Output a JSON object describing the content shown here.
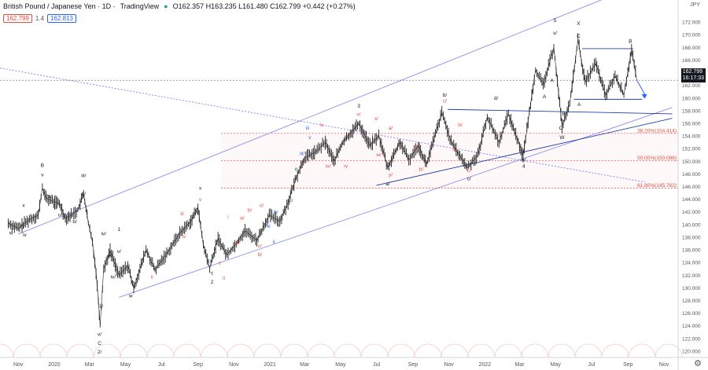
{
  "header": {
    "title": "British Pound / Japanese Yen · 1D · ",
    "source": "TradingView",
    "ohlc": "O162.357 H163.235 L161.480 C162.799 +0.442 (+0.27%)",
    "bid": "162.799",
    "spread": "1.4",
    "ask": "162.813",
    "currency": "JPY",
    "last_price": "162.799",
    "countdown": "16:17:33"
  },
  "chart_data": {
    "type": "line",
    "title": "",
    "xlabel": "",
    "ylabel": "",
    "x_ticks": [
      "Nov",
      "2020",
      "Mar",
      "May",
      "Jul",
      "Sep",
      "Nov",
      "2021",
      "Mar",
      "May",
      "Jul",
      "Sep",
      "Nov",
      "2022",
      "Mar",
      "May",
      "Jul",
      "Sep",
      "Nov"
    ],
    "y_ticks": [
      120,
      122,
      124,
      126,
      128,
      130,
      132,
      134,
      136,
      138,
      140,
      142,
      144,
      146,
      148,
      150,
      152,
      154,
      156,
      158,
      160,
      162,
      164,
      166,
      168,
      170,
      172
    ],
    "ylim": [
      119,
      174
    ],
    "fib_levels": [
      {
        "label": "38.20%(154.414)",
        "value": 154.414
      },
      {
        "label": "50.00%(150.088)",
        "value": 150.088
      },
      {
        "label": "61.80%(145.762)",
        "value": 145.762
      }
    ],
    "series": [
      {
        "values": [
          {
            "x": "2019-10-15",
            "y": 140.2
          },
          {
            "x": "2019-11-01",
            "y": 139.4
          },
          {
            "x": "2019-11-20",
            "y": 140.8
          },
          {
            "x": "2019-12-05",
            "y": 141.5
          },
          {
            "x": "2019-12-12",
            "y": 145.8
          },
          {
            "x": "2019-12-18",
            "y": 144.2
          },
          {
            "x": "2019-12-31",
            "y": 143.6
          },
          {
            "x": "2020-01-10",
            "y": 143.3
          },
          {
            "x": "2020-01-20",
            "y": 141.0
          },
          {
            "x": "2020-02-01",
            "y": 141.6
          },
          {
            "x": "2020-02-10",
            "y": 142.3
          },
          {
            "x": "2020-02-20",
            "y": 144.9
          },
          {
            "x": "2020-02-28",
            "y": 140.2
          },
          {
            "x": "2020-03-06",
            "y": 137.2
          },
          {
            "x": "2020-03-12",
            "y": 132.5
          },
          {
            "x": "2020-03-16",
            "y": 128.0
          },
          {
            "x": "2020-03-19",
            "y": 124.1
          },
          {
            "x": "2020-03-25",
            "y": 133.0
          },
          {
            "x": "2020-04-05",
            "y": 135.9
          },
          {
            "x": "2020-04-20",
            "y": 132.0
          },
          {
            "x": "2020-05-05",
            "y": 133.5
          },
          {
            "x": "2020-05-15",
            "y": 129.9
          },
          {
            "x": "2020-06-05",
            "y": 136.0
          },
          {
            "x": "2020-06-20",
            "y": 132.8
          },
          {
            "x": "2020-07-10",
            "y": 135.4
          },
          {
            "x": "2020-08-01",
            "y": 138.6
          },
          {
            "x": "2020-08-20",
            "y": 140.5
          },
          {
            "x": "2020-09-01",
            "y": 142.7
          },
          {
            "x": "2020-09-10",
            "y": 136.8
          },
          {
            "x": "2020-09-21",
            "y": 133.1
          },
          {
            "x": "2020-10-05",
            "y": 137.8
          },
          {
            "x": "2020-10-20",
            "y": 135.2
          },
          {
            "x": "2020-11-05",
            "y": 137.0
          },
          {
            "x": "2020-11-20",
            "y": 139.0
          },
          {
            "x": "2020-12-10",
            "y": 137.5
          },
          {
            "x": "2020-12-31",
            "y": 141.5
          },
          {
            "x": "2021-01-18",
            "y": 140.5
          },
          {
            "x": "2021-02-01",
            "y": 143.5
          },
          {
            "x": "2021-02-15",
            "y": 147.5
          },
          {
            "x": "2021-03-01",
            "y": 150.5
          },
          {
            "x": "2021-03-20",
            "y": 151.5
          },
          {
            "x": "2021-04-05",
            "y": 153.0
          },
          {
            "x": "2021-04-20",
            "y": 150.0
          },
          {
            "x": "2021-05-05",
            "y": 153.0
          },
          {
            "x": "2021-06-01",
            "y": 156.0
          },
          {
            "x": "2021-06-20",
            "y": 152.5
          },
          {
            "x": "2021-07-05",
            "y": 154.0
          },
          {
            "x": "2021-07-20",
            "y": 149.0
          },
          {
            "x": "2021-08-10",
            "y": 153.0
          },
          {
            "x": "2021-08-25",
            "y": 150.2
          },
          {
            "x": "2021-09-10",
            "y": 152.5
          },
          {
            "x": "2021-09-24",
            "y": 149.5
          },
          {
            "x": "2021-10-20",
            "y": 157.7
          },
          {
            "x": "2021-11-05",
            "y": 153.0
          },
          {
            "x": "2021-12-02",
            "y": 149.0
          },
          {
            "x": "2021-12-20",
            "y": 151.0
          },
          {
            "x": "2022-01-05",
            "y": 157.0
          },
          {
            "x": "2022-01-25",
            "y": 153.0
          },
          {
            "x": "2022-02-10",
            "y": 157.5
          },
          {
            "x": "2022-03-07",
            "y": 150.9
          },
          {
            "x": "2022-03-28",
            "y": 164.5
          },
          {
            "x": "2022-04-10",
            "y": 162.0
          },
          {
            "x": "2022-04-28",
            "y": 168.0
          },
          {
            "x": "2022-05-12",
            "y": 155.6
          },
          {
            "x": "2022-05-25",
            "y": 159.0
          },
          {
            "x": "2022-06-08",
            "y": 169.2
          },
          {
            "x": "2022-06-20",
            "y": 162.5
          },
          {
            "x": "2022-07-08",
            "y": 165.5
          },
          {
            "x": "2022-07-25",
            "y": 160.4
          },
          {
            "x": "2022-08-10",
            "y": 163.5
          },
          {
            "x": "2022-08-25",
            "y": 160.5
          },
          {
            "x": "2022-09-07",
            "y": 167.6
          },
          {
            "x": "2022-09-16",
            "y": 162.8
          }
        ]
      }
    ],
    "annotations": [
      {
        "x": "2019-12-12",
        "y": 149.1,
        "text": "B",
        "color": "#131722"
      },
      {
        "x": "2019-12-12",
        "y": 147.6,
        "text": "v",
        "color": "#131722"
      },
      {
        "x": "2019-11-10",
        "y": 142.8,
        "text": "x",
        "color": "#131722"
      },
      {
        "x": "2019-11-10",
        "y": 139.5,
        "text": "y",
        "color": "#131722"
      },
      {
        "x": "2019-12-25",
        "y": 144.2,
        "text": "a/",
        "color": "#131722"
      },
      {
        "x": "2020-01-10",
        "y": 141.3,
        "text": "u",
        "color": "#131722"
      },
      {
        "x": "2019-11-12",
        "y": 138.1,
        "text": "iv",
        "color": "#131722"
      },
      {
        "x": "2019-10-20",
        "y": 138.4,
        "text": "w",
        "color": "#131722"
      },
      {
        "x": "2020-02-20",
        "y": 147.5,
        "text": "iii/",
        "color": "#131722"
      },
      {
        "x": "2020-02-20",
        "y": 144.6,
        "text": "c/",
        "color": "#131722"
      },
      {
        "x": "2020-02-05",
        "y": 140.2,
        "text": "b/",
        "color": "#131722"
      },
      {
        "x": "2020-03-25",
        "y": 138.3,
        "text": "iv/",
        "color": "#131722"
      },
      {
        "x": "2020-04-05",
        "y": 134.8,
        "text": "iii/",
        "color": "#131722"
      },
      {
        "x": "2020-04-20",
        "y": 135.5,
        "text": "v/",
        "color": "#131722"
      },
      {
        "x": "2020-04-20",
        "y": 139.0,
        "text": "1",
        "color": "#131722"
      },
      {
        "x": "2020-04-10",
        "y": 131.5,
        "text": "iv/",
        "color": "#131722"
      },
      {
        "x": "2020-03-20",
        "y": 126.8,
        "text": "iii/",
        "color": "#131722"
      },
      {
        "x": "2020-03-18",
        "y": 122.4,
        "text": "v/",
        "color": "#131722"
      },
      {
        "x": "2020-03-18",
        "y": 121.0,
        "text": "C",
        "color": "#131722"
      },
      {
        "x": "2020-03-18",
        "y": 119.6,
        "text": "2/",
        "color": "#131722"
      },
      {
        "x": "2020-05-10",
        "y": 128.5,
        "text": "w",
        "color": "#131722"
      },
      {
        "x": "2020-06-15",
        "y": 131.5,
        "text": "ii",
        "color": "#e74c3c"
      },
      {
        "x": "2020-09-05",
        "y": 145.5,
        "text": "x",
        "color": "#131722"
      },
      {
        "x": "2020-09-05",
        "y": 143.7,
        "text": "v",
        "color": "#e74c3c"
      },
      {
        "x": "2020-08-05",
        "y": 141.5,
        "text": "iii",
        "color": "#e74c3c"
      },
      {
        "x": "2020-08-08",
        "y": 137.9,
        "text": "iv",
        "color": "#e74c3c"
      },
      {
        "x": "2020-09-25",
        "y": 132.1,
        "text": "c",
        "color": "#131722"
      },
      {
        "x": "2020-09-25",
        "y": 130.7,
        "text": "2",
        "color": "#131722"
      },
      {
        "x": "2020-10-15",
        "y": 131.3,
        "text": "ii",
        "color": "#e74c3c"
      },
      {
        "x": "2020-10-08",
        "y": 133.7,
        "text": "c",
        "color": "#e74c3c"
      },
      {
        "x": "2020-10-22",
        "y": 141.0,
        "text": "i",
        "color": "#e74c3c"
      },
      {
        "x": "2020-11-15",
        "y": 140.8,
        "text": "a/",
        "color": "#e74c3c"
      },
      {
        "x": "2020-11-08",
        "y": 137.0,
        "text": "a/",
        "color": "#e74c3c"
      },
      {
        "x": "2020-11-28",
        "y": 142.0,
        "text": "b/",
        "color": "#e74c3c"
      },
      {
        "x": "2020-12-15",
        "y": 135.0,
        "text": "b/",
        "color": "#e74c3c"
      },
      {
        "x": "2020-12-18",
        "y": 142.8,
        "text": "c/",
        "color": "#e74c3c"
      },
      {
        "x": "2020-12-15",
        "y": 136.4,
        "text": "c/",
        "color": "#e74c3c"
      },
      {
        "x": "2021-01-12",
        "y": 141.8,
        "text": "iv",
        "color": "#2962ff"
      },
      {
        "x": "2020-12-30",
        "y": 139.5,
        "text": "iii",
        "color": "#2962ff"
      },
      {
        "x": "2021-01-08",
        "y": 137.0,
        "text": "ii",
        "color": "#2962ff"
      },
      {
        "x": "2021-01-20",
        "y": 140.1,
        "text": "iii",
        "color": "#2e7d32"
      },
      {
        "x": "2021-02-05",
        "y": 143.5,
        "text": "iv/",
        "color": "#2e7d32"
      },
      {
        "x": "2021-02-15",
        "y": 148.5,
        "text": "iii",
        "color": "#2e7d32"
      },
      {
        "x": "2021-02-25",
        "y": 151.0,
        "text": "iii/",
        "color": "#2962ff"
      },
      {
        "x": "2021-03-10",
        "y": 153.5,
        "text": "v",
        "color": "#2962ff"
      },
      {
        "x": "2021-03-06",
        "y": 155.0,
        "text": "iii",
        "color": "#2962ff"
      },
      {
        "x": "2021-03-30",
        "y": 155.5,
        "text": "iv",
        "color": "#e74c3c"
      },
      {
        "x": "2021-04-10",
        "y": 149.0,
        "text": "iv/",
        "color": "#e74c3c"
      },
      {
        "x": "2021-05-10",
        "y": 149.0,
        "text": "iv",
        "color": "#e74c3c"
      },
      {
        "x": "2021-06-01",
        "y": 158.5,
        "text": "3",
        "color": "#131722"
      },
      {
        "x": "2021-06-01",
        "y": 157.2,
        "text": "v/",
        "color": "#e74c3c"
      },
      {
        "x": "2021-07-01",
        "y": 156.5,
        "text": "x/",
        "color": "#e74c3c"
      },
      {
        "x": "2021-07-25",
        "y": 155.0,
        "text": "a/",
        "color": "#e74c3c"
      },
      {
        "x": "2021-07-05",
        "y": 150.8,
        "text": "w/",
        "color": "#e74c3c"
      },
      {
        "x": "2021-07-25",
        "y": 147.6,
        "text": "y/",
        "color": "#e74c3c"
      },
      {
        "x": "2021-07-20",
        "y": 146.2,
        "text": "a/",
        "color": "#131722"
      },
      {
        "x": "2021-09-05",
        "y": 152.0,
        "text": "c/",
        "color": "#e74c3c"
      },
      {
        "x": "2021-09-15",
        "y": 148.5,
        "text": "b/",
        "color": "#e74c3c"
      },
      {
        "x": "2021-10-25",
        "y": 160.2,
        "text": "b/",
        "color": "#131722"
      },
      {
        "x": "2021-10-25",
        "y": 159.3,
        "text": "c/",
        "color": "#e74c3c"
      },
      {
        "x": "2021-11-20",
        "y": 155.5,
        "text": "b/",
        "color": "#e74c3c"
      },
      {
        "x": "2021-11-10",
        "y": 151.7,
        "text": "a/",
        "color": "#e74c3c"
      },
      {
        "x": "2021-12-05",
        "y": 148.3,
        "text": "c/",
        "color": "#e74c3c"
      },
      {
        "x": "2021-12-05",
        "y": 147.0,
        "text": "c/",
        "color": "#131722"
      },
      {
        "x": "2022-01-20",
        "y": 159.7,
        "text": "d/",
        "color": "#131722"
      },
      {
        "x": "2022-03-08",
        "y": 150.0,
        "text": "e/",
        "color": "#131722"
      },
      {
        "x": "2022-03-08",
        "y": 149.0,
        "text": "4",
        "color": "#131722"
      },
      {
        "x": "2022-04-30",
        "y": 172.0,
        "text": "5",
        "color": "#131722"
      },
      {
        "x": "2022-04-30",
        "y": 170.0,
        "text": "v/",
        "color": "#131722"
      },
      {
        "x": "2022-04-25",
        "y": 162.5,
        "text": "A",
        "color": "#131722"
      },
      {
        "x": "2022-04-12",
        "y": 160.0,
        "text": "A",
        "color": "#131722"
      },
      {
        "x": "2022-05-15",
        "y": 157.3,
        "text": "B",
        "color": "#131722"
      },
      {
        "x": "2022-05-10",
        "y": 155.0,
        "text": "C",
        "color": "#131722"
      },
      {
        "x": "2022-05-12",
        "y": 153.5,
        "text": "W",
        "color": "#131722"
      },
      {
        "x": "2022-06-09",
        "y": 171.5,
        "text": "X",
        "color": "#131722"
      },
      {
        "x": "2022-06-09",
        "y": 169.5,
        "text": "C",
        "color": "#131722"
      },
      {
        "x": "2022-06-10",
        "y": 158.7,
        "text": "A",
        "color": "#131722"
      },
      {
        "x": "2022-09-05",
        "y": 168.7,
        "text": "B",
        "color": "#131722"
      }
    ],
    "lines": [
      {
        "x1": "2019-09-15",
        "y1": 165.0,
        "x2": "2022-09-30",
        "y2": 146.7,
        "color": "#7b7ff5",
        "dash": true
      },
      {
        "x1": "2019-11-01",
        "y1": 138.5,
        "x2": "2022-11-15",
        "y2": 180.0,
        "color": "#8b8ff0",
        "dash": false
      },
      {
        "x1": "2020-04-20",
        "y1": 128.5,
        "x2": "2022-11-15",
        "y2": 158.5,
        "color": "#8b8ff0",
        "dash": false
      },
      {
        "x1": "2021-07-01",
        "y1": 146.2,
        "x2": "2022-11-15",
        "y2": 156.8,
        "color": "#1e3fa8",
        "dash": false
      },
      {
        "x1": "2021-10-30",
        "y1": 158.2,
        "x2": "2022-11-15",
        "y2": 157.5,
        "color": "#1e3fa8",
        "dash": false
      },
      {
        "x1": "2022-06-15",
        "y1": 167.8,
        "x2": "2022-09-10",
        "y2": 167.8,
        "color": "#1e3fa8",
        "dash": false
      },
      {
        "x1": "2022-06-01",
        "y1": 159.8,
        "x2": "2022-09-25",
        "y2": 159.8,
        "color": "#1e3fa8",
        "dash": false
      }
    ]
  }
}
